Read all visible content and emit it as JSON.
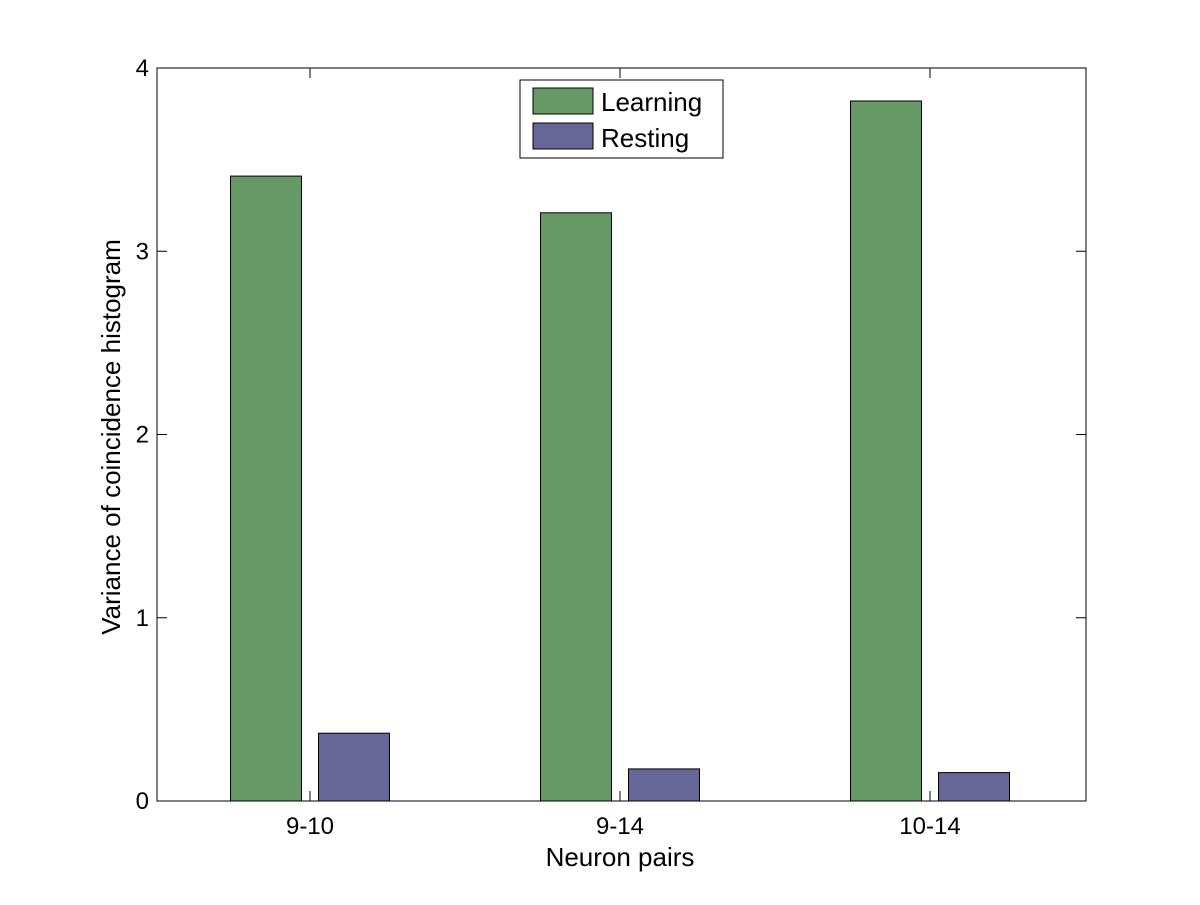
{
  "chart_data": {
    "type": "bar",
    "title": "",
    "xlabel": "Neuron pairs",
    "ylabel": "Variance of coincidence histogram",
    "categories": [
      "9-10",
      "9-14",
      "10-14"
    ],
    "series": [
      {
        "name": "Learning",
        "values": [
          3.41,
          3.21,
          3.82
        ],
        "color": "#669966"
      },
      {
        "name": "Resting",
        "values": [
          0.37,
          0.175,
          0.155
        ],
        "color": "#666699"
      }
    ],
    "ylim": [
      0,
      4
    ],
    "yticks": [
      0,
      1,
      2,
      3,
      4
    ],
    "grid": false,
    "legend": "top-center"
  }
}
